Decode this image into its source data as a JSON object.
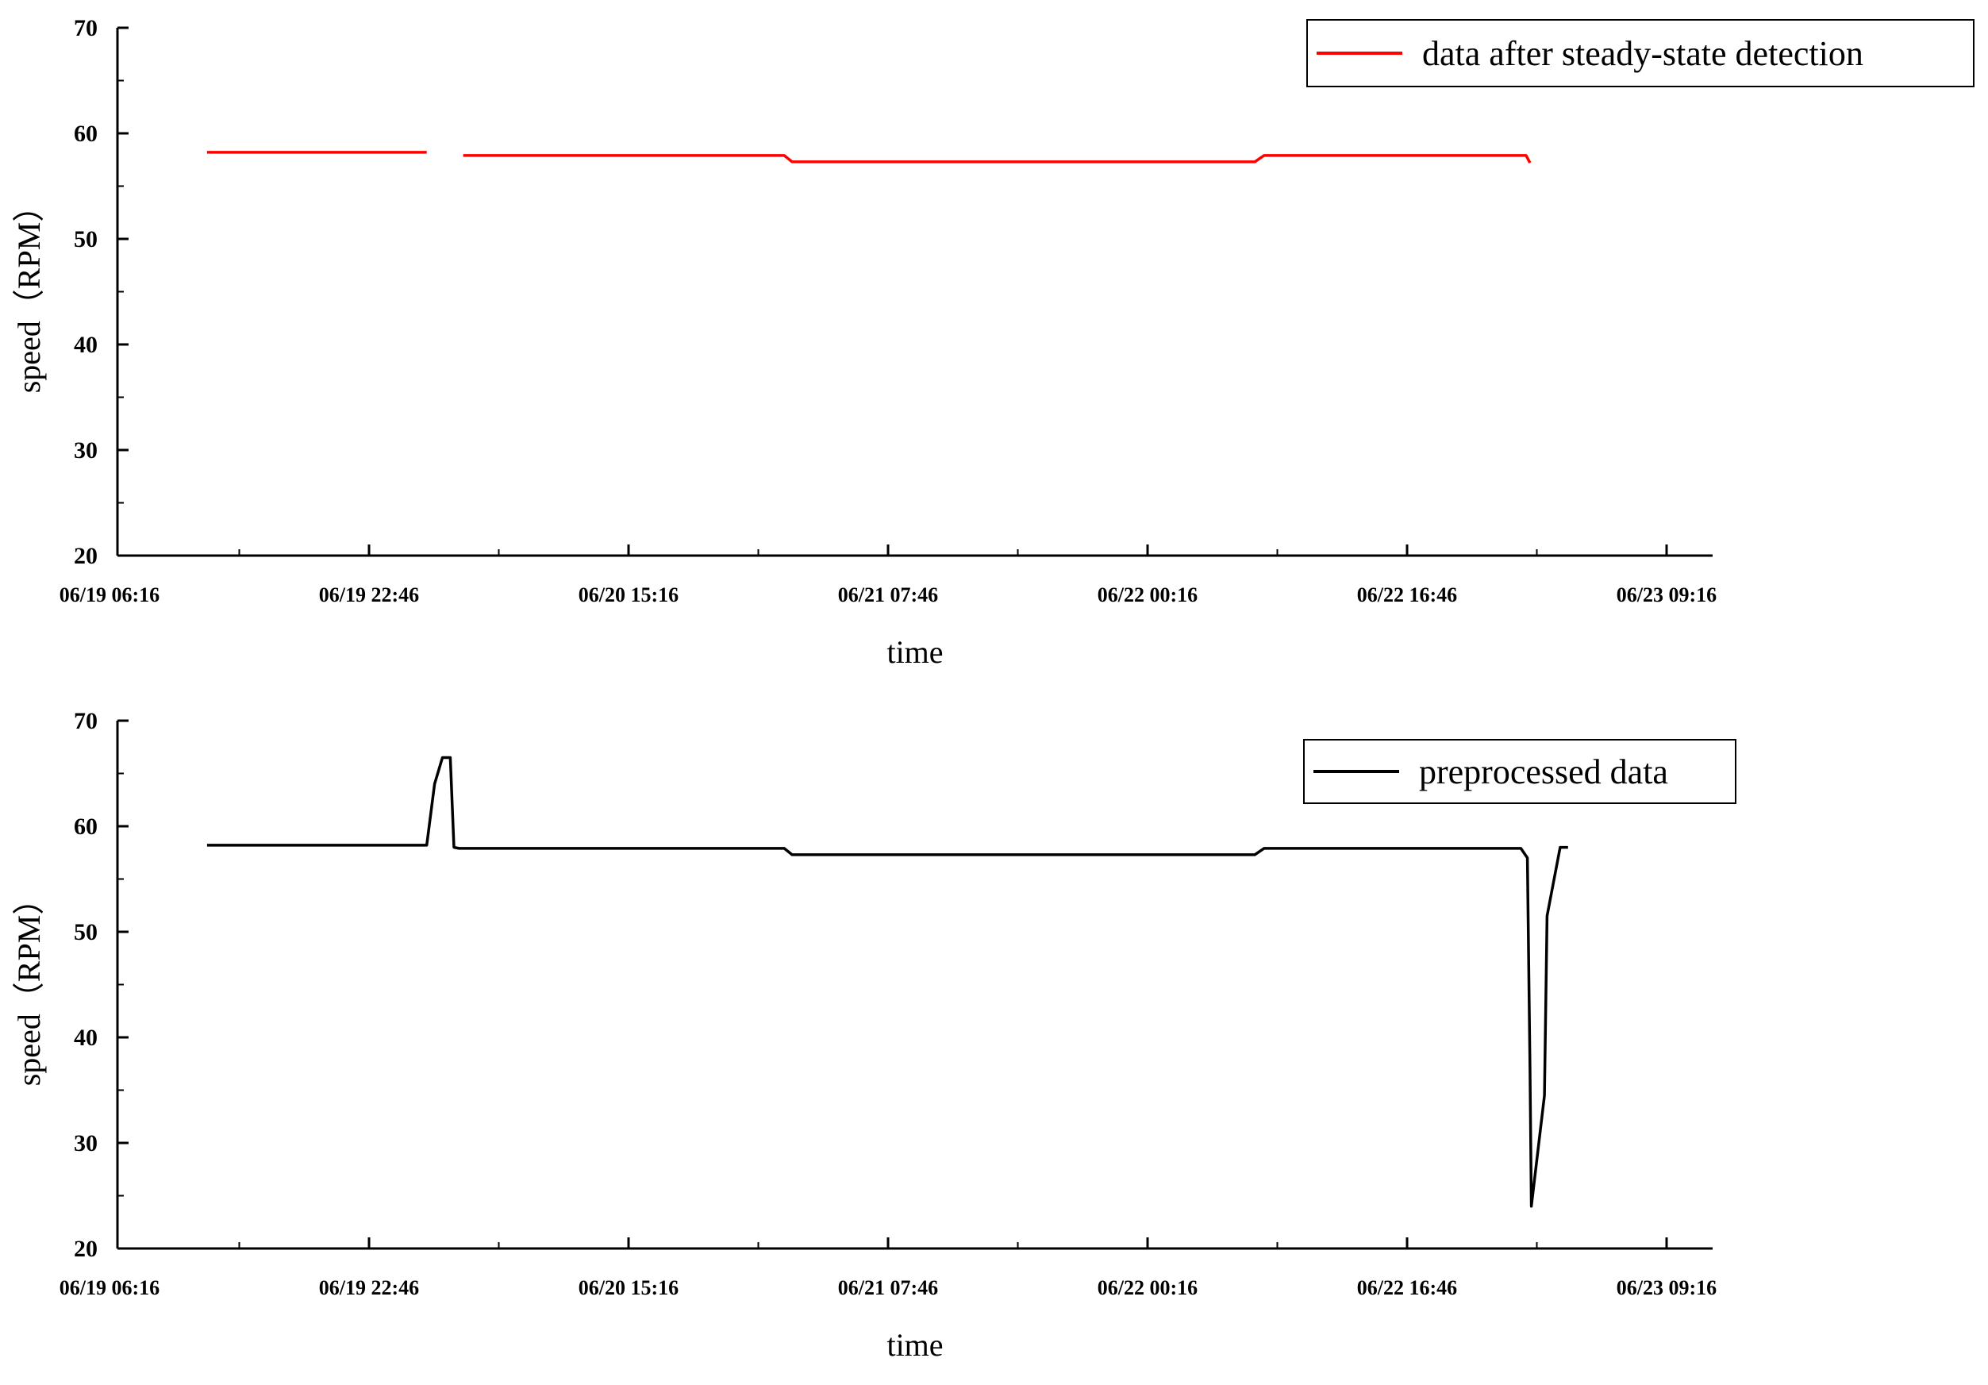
{
  "chart_data": [
    {
      "type": "line",
      "xlabel": "time",
      "ylabel": "speed（RPM）",
      "ylim": [
        20,
        70
      ],
      "yticks": [
        "20",
        "30",
        "40",
        "50",
        "60",
        "70"
      ],
      "xlim": [
        "06/19 06:16",
        "06/23 09:16"
      ],
      "xticks": [
        "06/19 06:16",
        "06/19 22:46",
        "06/20 15:16",
        "06/21 07:46",
        "06/22 00:16",
        "06/22 16:46",
        "06/23 09:16"
      ],
      "legend": "top-right",
      "grid": false,
      "series": [
        {
          "name": "data after steady-state detection",
          "color": "#ff0000",
          "segments": [
            {
              "x": [
                "06/19 12:28",
                "06/20 02:26"
              ],
              "y": [
                58.2,
                58.2
              ]
            },
            {
              "x": [
                "06/20 04:45",
                "06/21 01:10",
                "06/21 01:40",
                "06/22 07:05",
                "06/22 07:40",
                "06/23 00:20",
                "06/23 00:35"
              ],
              "y": [
                57.9,
                57.9,
                57.3,
                57.3,
                57.9,
                57.9,
                57.2
              ]
            }
          ]
        }
      ]
    },
    {
      "type": "line",
      "xlabel": "time",
      "ylabel": "speed（RPM）",
      "ylim": [
        20,
        70
      ],
      "yticks": [
        "20",
        "30",
        "40",
        "50",
        "60",
        "70"
      ],
      "xlim": [
        "06/19 06:16",
        "06/23 09:16"
      ],
      "xticks": [
        "06/19 06:16",
        "06/19 22:46",
        "06/20 15:16",
        "06/21 07:46",
        "06/22 00:16",
        "06/22 16:46",
        "06/23 09:16"
      ],
      "legend": "top-right",
      "grid": false,
      "series": [
        {
          "name": "preprocessed data",
          "color": "#000000",
          "segments": [
            {
              "x": [
                "06/19 12:28",
                "06/20 02:26",
                "06/20 02:56",
                "06/20 03:26",
                "06/20 03:56",
                "06/20 04:10",
                "06/20 04:30",
                "06/21 01:10",
                "06/21 01:40",
                "06/22 07:05",
                "06/22 07:40",
                "06/23 00:00",
                "06/23 00:25",
                "06/23 00:35",
                "06/23 00:40",
                "06/23 01:30",
                "06/23 01:40",
                "06/23 02:30",
                "06/23 03:00"
              ],
              "y": [
                58.2,
                58.2,
                64.0,
                66.5,
                66.5,
                58.0,
                57.9,
                57.9,
                57.3,
                57.3,
                57.9,
                57.9,
                57.0,
                37.0,
                24.0,
                34.5,
                51.5,
                58.0,
                58.0
              ]
            }
          ]
        }
      ]
    }
  ]
}
